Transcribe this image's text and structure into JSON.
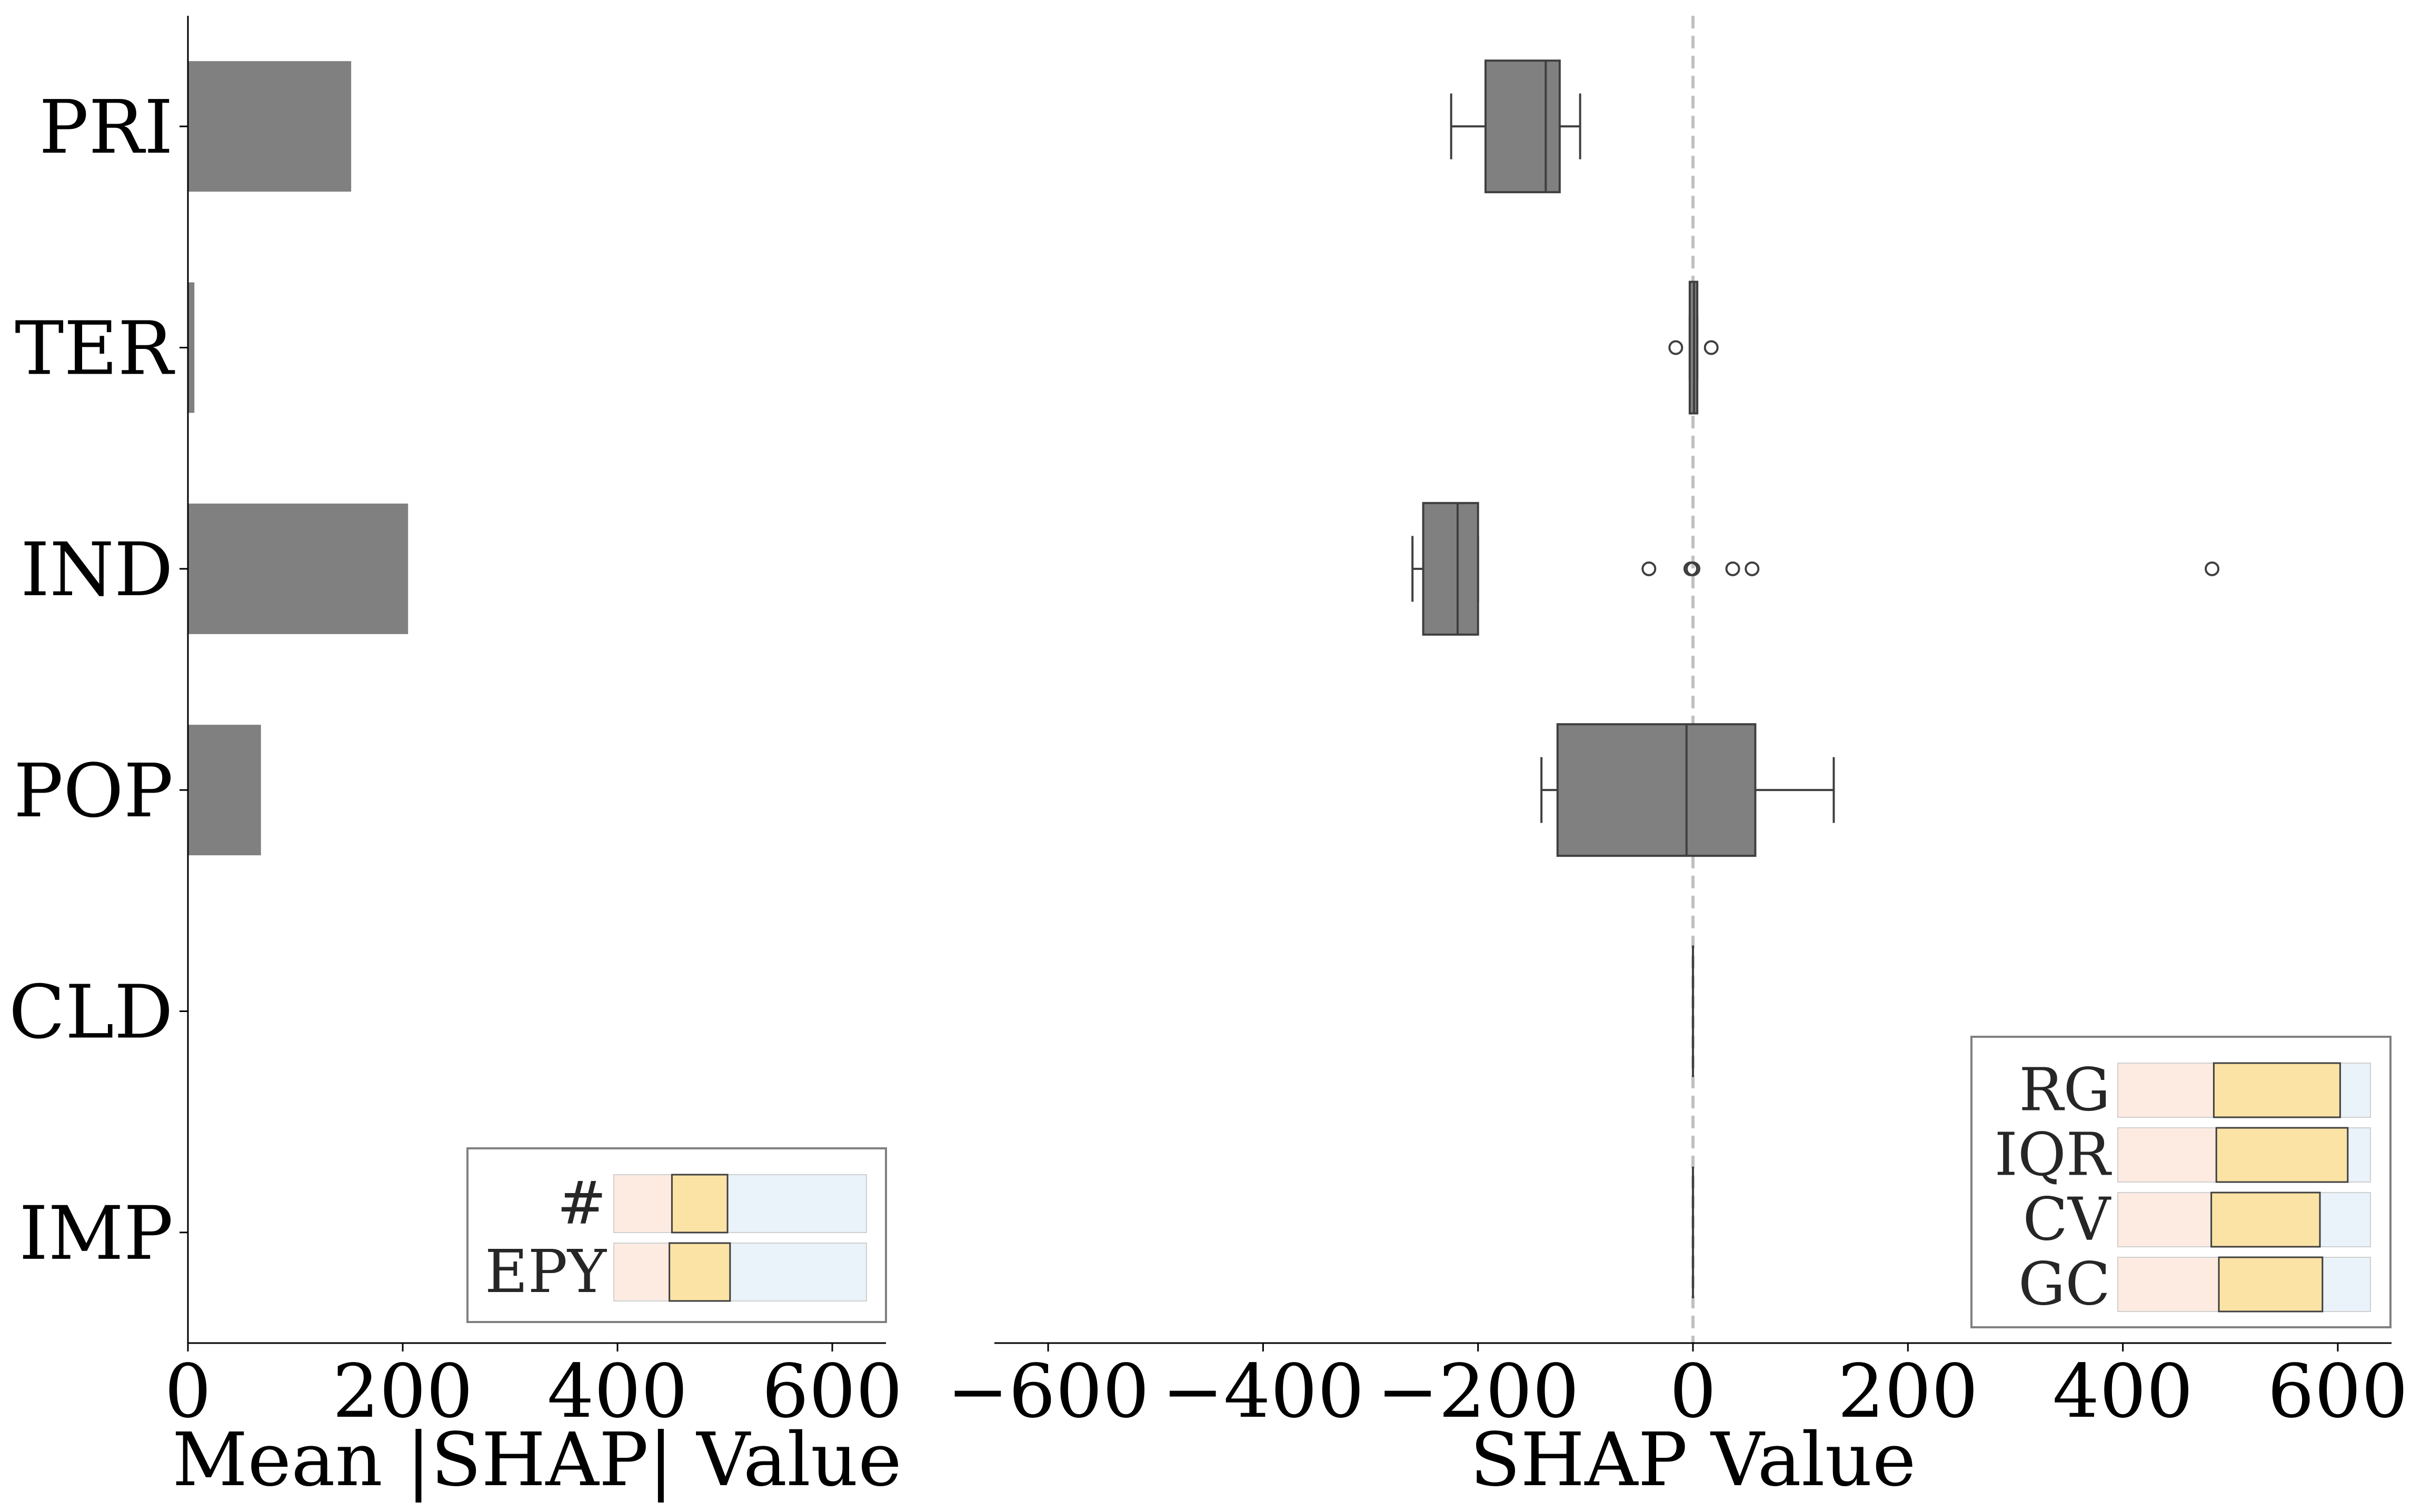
{
  "chart_data": [
    {
      "type": "bar",
      "orientation": "horizontal",
      "categories": [
        "PRI",
        "TER",
        "IND",
        "POP",
        "CLD",
        "IMP"
      ],
      "values": [
        152,
        6,
        205,
        68,
        0.5,
        0.5
      ],
      "xlabel": "Mean |SHAP| Value",
      "ylabel": "",
      "xlim": [
        0,
        650
      ],
      "xticks": [
        "0",
        "200",
        "400",
        "600"
      ],
      "bar_color": "#808080",
      "legend": {
        "position": "lower-right",
        "items": [
          {
            "label": "#",
            "bands": [
              0,
              0.23,
              0.45,
              1
            ],
            "marker": [
              0.23,
              0.45
            ]
          },
          {
            "label": "EPY",
            "bands": [
              0,
              0.22,
              0.46,
              1
            ],
            "marker": [
              0.22,
              0.46
            ]
          }
        ]
      }
    },
    {
      "type": "box",
      "orientation": "horizontal",
      "categories": [
        "PRI",
        "TER",
        "IND",
        "POP",
        "CLD",
        "IMP"
      ],
      "boxes": [
        {
          "whislo": -225,
          "q1": -193,
          "med": -137,
          "q3": -124,
          "whishi": -105,
          "fliers": []
        },
        {
          "whislo": -3,
          "q1": -3,
          "med": 1,
          "q3": 4,
          "whishi": 4,
          "fliers": [
            -16,
            17
          ]
        },
        {
          "whislo": -261,
          "q1": -251,
          "med": -219,
          "q3": -200,
          "whishi": -200,
          "fliers": [
            -41,
            -2,
            0,
            37,
            55,
            483
          ]
        },
        {
          "whislo": -141,
          "q1": -126,
          "med": -6,
          "q3": 58,
          "whishi": 131,
          "fliers": []
        },
        {
          "whislo": 0,
          "q1": 0,
          "med": 0,
          "q3": 0,
          "whishi": 0,
          "fliers": []
        },
        {
          "whislo": 0,
          "q1": 0,
          "med": 0,
          "q3": 0,
          "whishi": 0,
          "fliers": []
        }
      ],
      "reference_line": 0,
      "xlabel": "SHAP Value",
      "ylabel": "",
      "xlim": [
        -650,
        650
      ],
      "xticks": [
        "−600",
        "−400",
        "−200",
        "0",
        "200",
        "400",
        "600"
      ],
      "box_color": "#808080",
      "legend": {
        "position": "lower-right",
        "items": [
          {
            "label": "RG",
            "bands": [
              0,
              0.38,
              0.88,
              1
            ],
            "marker": [
              0.38,
              0.88
            ]
          },
          {
            "label": "IQR",
            "bands": [
              0,
              0.39,
              0.91,
              1
            ],
            "marker": [
              0.39,
              0.91
            ]
          },
          {
            "label": "CV",
            "bands": [
              0,
              0.37,
              0.8,
              1
            ],
            "marker": [
              0.37,
              0.8
            ]
          },
          {
            "label": "GC",
            "bands": [
              0,
              0.4,
              0.81,
              1
            ],
            "marker": [
              0.4,
              0.81
            ]
          }
        ]
      }
    }
  ],
  "colors": {
    "band_low": "#fdebe2",
    "band_mid": "#fbe3a6",
    "band_high": "#eaf2fa",
    "gray": "#808080",
    "reference_line": "#c0c0c0"
  }
}
